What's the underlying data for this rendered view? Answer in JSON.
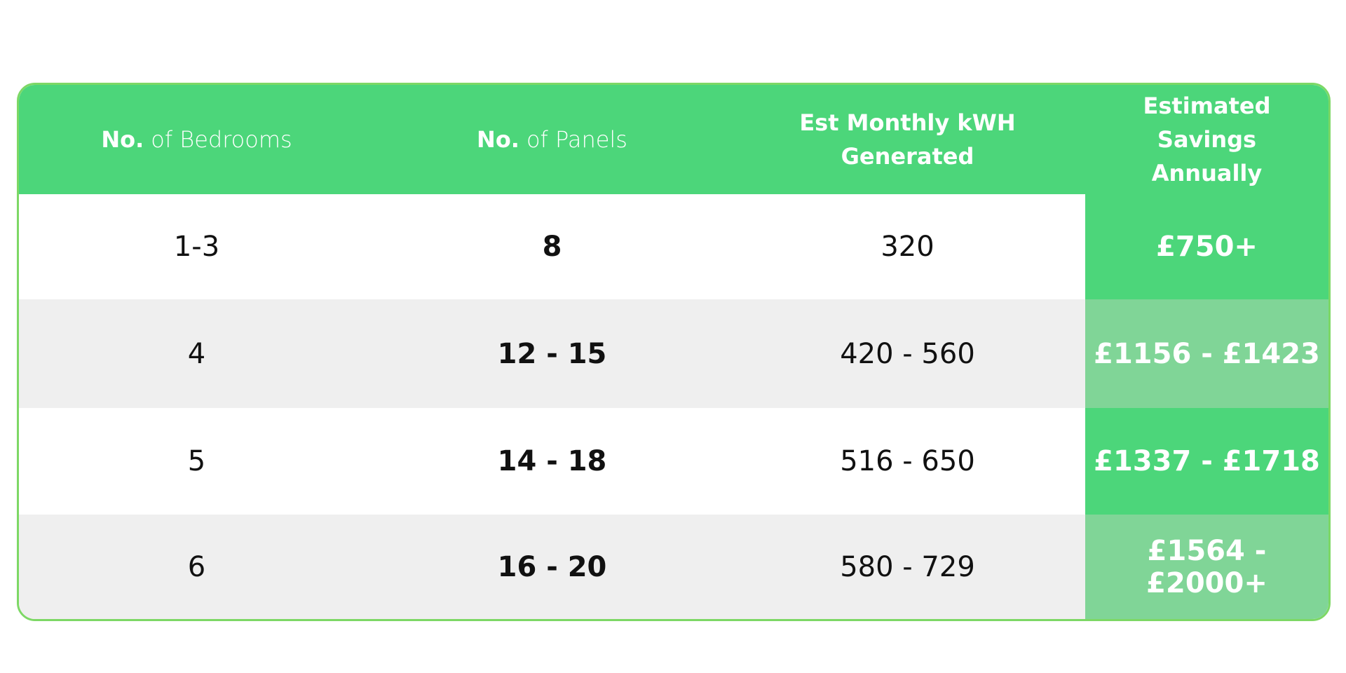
{
  "table": {
    "header": [
      {
        "bold": "No.",
        "text": "of Bedrooms"
      },
      {
        "bold": "No.",
        "text": "of Panels"
      },
      {
        "text": "Est Monthly kWH Generated"
      },
      {
        "text": "Estimated Savings Annually"
      }
    ],
    "rows": [
      [
        "1-3",
        "8",
        "320",
        "£750+"
      ],
      [
        "4",
        "12 - 15",
        "420 - 560",
        "£1156 - £1423"
      ],
      [
        "5",
        "14 - 18",
        "516 - 650",
        "£1337 - £1718"
      ],
      [
        "6",
        "16 - 20",
        "580 - 729",
        "£1564 - £2000+"
      ]
    ]
  }
}
